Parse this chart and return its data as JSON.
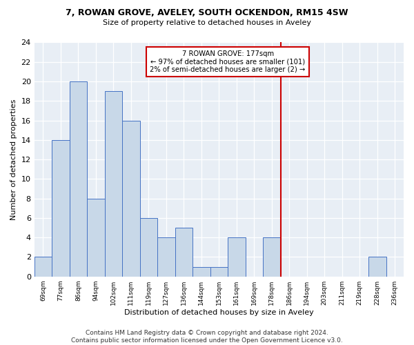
{
  "title": "7, ROWAN GROVE, AVELEY, SOUTH OCKENDON, RM15 4SW",
  "subtitle": "Size of property relative to detached houses in Aveley",
  "xlabel": "Distribution of detached houses by size in Aveley",
  "ylabel": "Number of detached properties",
  "bins": [
    "69sqm",
    "77sqm",
    "86sqm",
    "94sqm",
    "102sqm",
    "111sqm",
    "119sqm",
    "127sqm",
    "136sqm",
    "144sqm",
    "153sqm",
    "161sqm",
    "169sqm",
    "178sqm",
    "186sqm",
    "194sqm",
    "203sqm",
    "211sqm",
    "219sqm",
    "228sqm",
    "236sqm"
  ],
  "values": [
    2,
    14,
    20,
    8,
    19,
    16,
    6,
    4,
    5,
    1,
    1,
    4,
    0,
    4,
    0,
    0,
    0,
    0,
    0,
    2,
    0
  ],
  "bar_color": "#c8d8e8",
  "bar_edge_color": "#4472c4",
  "highlight_bar_index": 13,
  "vline_color": "#cc0000",
  "annotation_text": "7 ROWAN GROVE: 177sqm\n← 97% of detached houses are smaller (101)\n2% of semi-detached houses are larger (2) →",
  "annotation_box_color": "#ffffff",
  "annotation_box_edge": "#cc0000",
  "ylim": [
    0,
    24
  ],
  "yticks": [
    0,
    2,
    4,
    6,
    8,
    10,
    12,
    14,
    16,
    18,
    20,
    22,
    24
  ],
  "footer": "Contains HM Land Registry data © Crown copyright and database right 2024.\nContains public sector information licensed under the Open Government Licence v3.0.",
  "bg_color": "#e8eef5"
}
